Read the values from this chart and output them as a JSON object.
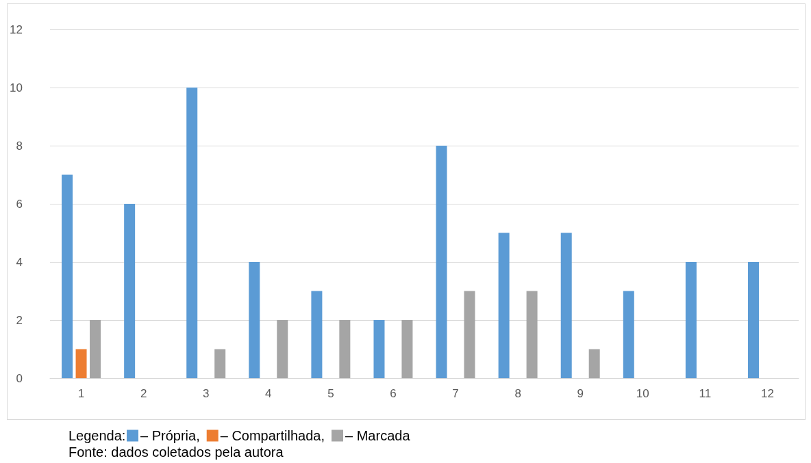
{
  "chart_data": {
    "type": "bar",
    "categories": [
      "1",
      "2",
      "3",
      "4",
      "5",
      "6",
      "7",
      "8",
      "9",
      "10",
      "11",
      "12"
    ],
    "series": [
      {
        "name": "– Própria,",
        "color": "#5b9bd5",
        "values": [
          7,
          6,
          10,
          4,
          3,
          2,
          8,
          5,
          5,
          3,
          4,
          4
        ]
      },
      {
        "name": "– Compartilhada,",
        "color": "#ed7d31",
        "values": [
          1,
          0,
          0,
          0,
          0,
          0,
          0,
          0,
          0,
          0,
          0,
          0
        ]
      },
      {
        "name": "– Marcada",
        "color": "#a5a5a5",
        "values": [
          2,
          0,
          1,
          2,
          2,
          2,
          3,
          3,
          1,
          0,
          0,
          0
        ]
      }
    ],
    "ylim": [
      0,
      12
    ],
    "yticks": [
      0,
      2,
      4,
      6,
      8,
      10,
      12
    ],
    "grid": "y",
    "legend": "bottom",
    "legend_title": "Legenda:",
    "annotations": [
      "Fonte: dados coletados pela autora"
    ]
  }
}
